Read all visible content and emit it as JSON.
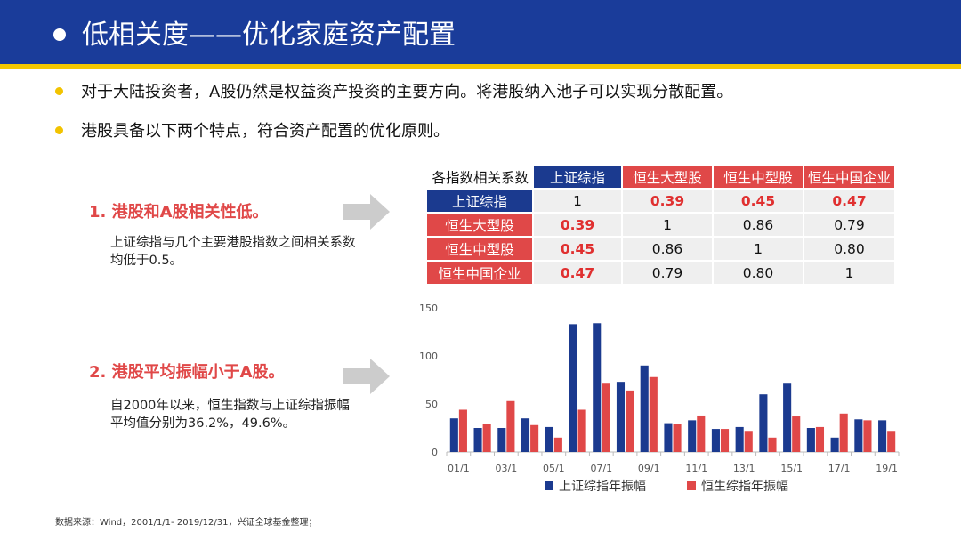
{
  "header": {
    "title": "低相关度——优化家庭资产配置"
  },
  "bullets": [
    "对于大陆投资者，A股仍然是权益资产投资的主要方向。将港股纳入池子可以实现分散配置。",
    "港股具备以下两个特点，符合资产配置的优化原则。"
  ],
  "points": [
    {
      "title": "1. 港股和A股相关性低。",
      "desc": "上证综指与几个主要港股指数之间相关系数均低于0.5。"
    },
    {
      "title": "2. 港股平均振幅小于A股。",
      "desc": "自2000年以来，恒生指数与上证综指振幅平均值分别为36.2%，49.6%。"
    }
  ],
  "correlation_table": {
    "corner": "各指数相关系数",
    "columns": [
      "上证综指",
      "恒生大型股",
      "恒生中型股",
      "恒生中国企业"
    ],
    "rows": [
      {
        "name": "上证综指",
        "values": [
          "1",
          "0.39",
          "0.45",
          "0.47"
        ]
      },
      {
        "name": "恒生大型股",
        "values": [
          "0.39",
          "1",
          "0.86",
          "0.79"
        ]
      },
      {
        "name": "恒生中型股",
        "values": [
          "0.45",
          "0.86",
          "1",
          "0.80"
        ]
      },
      {
        "name": "恒生中国企业",
        "values": [
          "0.47",
          "0.79",
          "0.80",
          "1"
        ]
      }
    ]
  },
  "chart_data": {
    "type": "bar",
    "categories": [
      "01/1",
      "02/1",
      "03/1",
      "04/1",
      "05/1",
      "06/1",
      "07/1",
      "08/1",
      "09/1",
      "10/1",
      "11/1",
      "12/1",
      "13/1",
      "14/1",
      "15/1",
      "16/1",
      "17/1",
      "18/1",
      "19/1"
    ],
    "tick_labels": [
      "01/1",
      "03/1",
      "05/1",
      "07/1",
      "09/1",
      "11/1",
      "13/1",
      "15/1",
      "17/1",
      "19/1"
    ],
    "series": [
      {
        "name": "上证综指年振幅",
        "color": "#1b3a8f",
        "values": [
          35,
          25,
          25,
          35,
          26,
          133,
          134,
          73,
          90,
          30,
          33,
          24,
          26,
          60,
          72,
          25,
          15,
          34,
          33
        ]
      },
      {
        "name": "恒生综指年振幅",
        "color": "#e04848",
        "values": [
          44,
          29,
          53,
          28,
          15,
          44,
          72,
          64,
          78,
          29,
          38,
          24,
          22,
          15,
          37,
          26,
          40,
          33,
          22
        ]
      }
    ],
    "yticks": [
      "0",
      "50",
      "100",
      "150"
    ],
    "ylim": [
      0,
      150
    ],
    "legend_position": "bottom",
    "grid": false
  },
  "footnote": "数据来源：Wind，2001/1/1- 2019/12/31，兴证全球基金整理；"
}
